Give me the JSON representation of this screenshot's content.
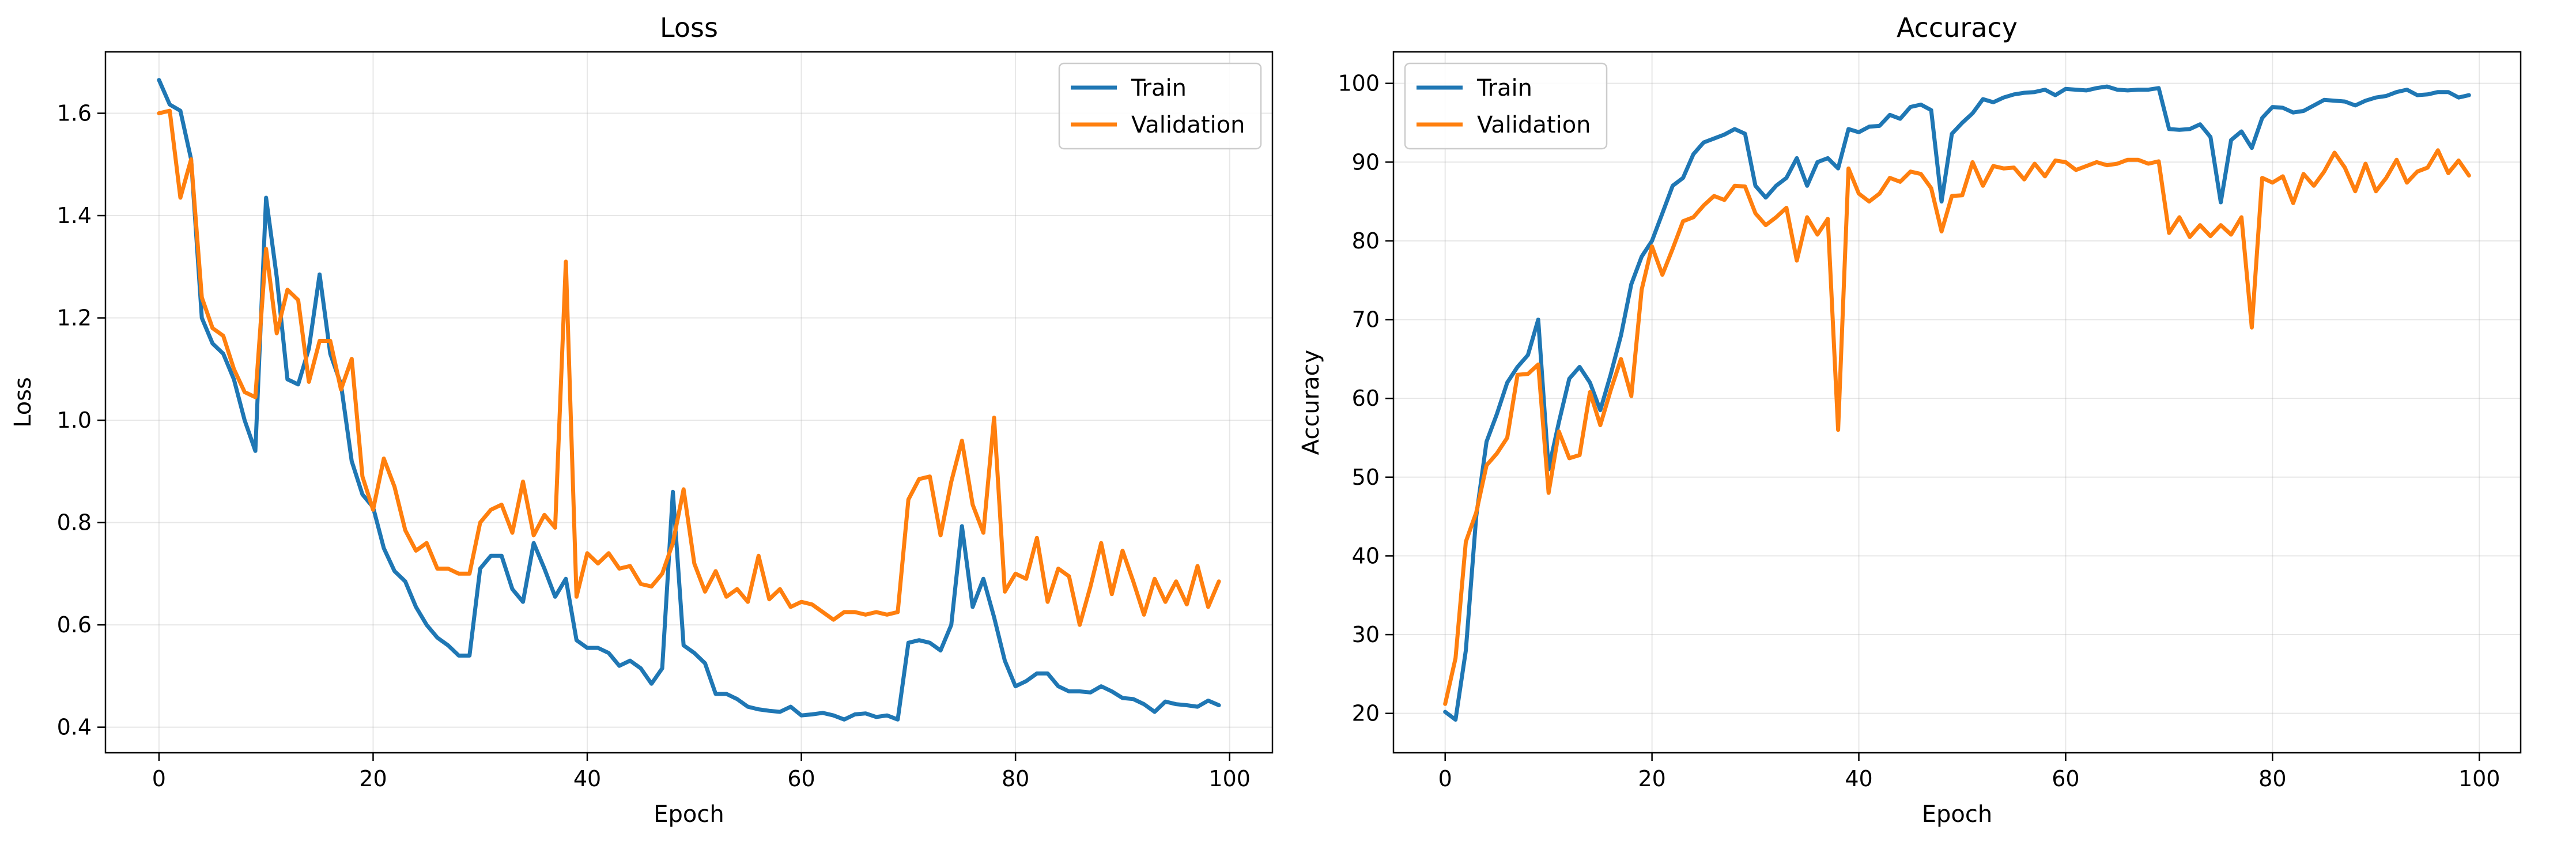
{
  "colors": {
    "train": "#1f77b4",
    "validation": "#ff7f0e"
  },
  "chart_data": [
    {
      "type": "line",
      "title": "Loss",
      "xlabel": "Epoch",
      "ylabel": "Loss",
      "xlim": [
        -5,
        104
      ],
      "ylim": [
        0.35,
        1.72
      ],
      "xticks": [
        0,
        20,
        40,
        60,
        80,
        100
      ],
      "yticks": [
        0.4,
        0.6,
        0.8,
        1.0,
        1.2,
        1.4,
        1.6
      ],
      "ytick_labels": [
        "0.4",
        "0.6",
        "0.8",
        "1.0",
        "1.2",
        "1.4",
        "1.6"
      ],
      "grid": true,
      "legend_position": "top-right",
      "x": [
        0,
        1,
        2,
        3,
        4,
        5,
        6,
        7,
        8,
        9,
        10,
        11,
        12,
        13,
        14,
        15,
        16,
        17,
        18,
        19,
        20,
        21,
        22,
        23,
        24,
        25,
        26,
        27,
        28,
        29,
        30,
        31,
        32,
        33,
        34,
        35,
        36,
        37,
        38,
        39,
        40,
        41,
        42,
        43,
        44,
        45,
        46,
        47,
        48,
        49,
        50,
        51,
        52,
        53,
        54,
        55,
        56,
        57,
        58,
        59,
        60,
        61,
        62,
        63,
        64,
        65,
        66,
        67,
        68,
        69,
        70,
        71,
        72,
        73,
        74,
        75,
        76,
        77,
        78,
        79,
        80,
        81,
        82,
        83,
        84,
        85,
        86,
        87,
        88,
        89,
        90,
        91,
        92,
        93,
        94,
        95,
        96,
        97,
        98,
        99
      ],
      "series": [
        {
          "name": "Train",
          "color": "#1f77b4",
          "values": [
            1.665,
            1.617,
            1.605,
            1.51,
            1.2,
            1.15,
            1.13,
            1.08,
            1.0,
            0.94,
            1.435,
            1.28,
            1.08,
            1.07,
            1.14,
            1.285,
            1.13,
            1.07,
            0.92,
            0.855,
            0.83,
            0.75,
            0.705,
            0.685,
            0.635,
            0.6,
            0.575,
            0.56,
            0.54,
            0.54,
            0.71,
            0.735,
            0.735,
            0.67,
            0.645,
            0.76,
            0.71,
            0.655,
            0.69,
            0.57,
            0.555,
            0.555,
            0.545,
            0.52,
            0.53,
            0.515,
            0.485,
            0.515,
            0.86,
            0.56,
            0.545,
            0.525,
            0.465,
            0.465,
            0.455,
            0.44,
            0.435,
            0.432,
            0.43,
            0.44,
            0.423,
            0.425,
            0.428,
            0.423,
            0.415,
            0.425,
            0.427,
            0.42,
            0.423,
            0.415,
            0.565,
            0.57,
            0.565,
            0.55,
            0.6,
            0.793,
            0.635,
            0.69,
            0.615,
            0.53,
            0.48,
            0.49,
            0.505,
            0.505,
            0.48,
            0.47,
            0.47,
            0.468,
            0.48,
            0.47,
            0.457,
            0.455,
            0.445,
            0.43,
            0.45,
            0.445,
            0.443,
            0.44,
            0.452,
            0.443
          ]
        },
        {
          "name": "Validation",
          "color": "#ff7f0e",
          "values": [
            1.6,
            1.605,
            1.435,
            1.51,
            1.24,
            1.18,
            1.165,
            1.1,
            1.055,
            1.045,
            1.335,
            1.17,
            1.255,
            1.235,
            1.075,
            1.155,
            1.155,
            1.06,
            1.12,
            0.89,
            0.825,
            0.925,
            0.87,
            0.785,
            0.745,
            0.76,
            0.71,
            0.71,
            0.7,
            0.7,
            0.8,
            0.825,
            0.835,
            0.78,
            0.88,
            0.775,
            0.815,
            0.79,
            1.31,
            0.655,
            0.74,
            0.72,
            0.74,
            0.71,
            0.715,
            0.68,
            0.675,
            0.7,
            0.76,
            0.865,
            0.72,
            0.665,
            0.705,
            0.655,
            0.67,
            0.645,
            0.735,
            0.65,
            0.67,
            0.635,
            0.645,
            0.64,
            0.625,
            0.61,
            0.625,
            0.625,
            0.62,
            0.625,
            0.62,
            0.625,
            0.845,
            0.885,
            0.89,
            0.775,
            0.88,
            0.96,
            0.835,
            0.78,
            1.005,
            0.665,
            0.7,
            0.69,
            0.77,
            0.645,
            0.71,
            0.695,
            0.6,
            0.675,
            0.76,
            0.66,
            0.745,
            0.685,
            0.62,
            0.69,
            0.645,
            0.685,
            0.64,
            0.715,
            0.635,
            0.685
          ]
        }
      ]
    },
    {
      "type": "line",
      "title": "Accuracy",
      "xlabel": "Epoch",
      "ylabel": "Accuracy",
      "xlim": [
        -5,
        104
      ],
      "ylim": [
        15,
        104
      ],
      "xticks": [
        0,
        20,
        40,
        60,
        80,
        100
      ],
      "yticks": [
        20,
        30,
        40,
        50,
        60,
        70,
        80,
        90,
        100
      ],
      "ytick_labels": [
        "20",
        "30",
        "40",
        "50",
        "60",
        "70",
        "80",
        "90",
        "100"
      ],
      "grid": true,
      "legend_position": "top-left",
      "x": [
        0,
        1,
        2,
        3,
        4,
        5,
        6,
        7,
        8,
        9,
        10,
        11,
        12,
        13,
        14,
        15,
        16,
        17,
        18,
        19,
        20,
        21,
        22,
        23,
        24,
        25,
        26,
        27,
        28,
        29,
        30,
        31,
        32,
        33,
        34,
        35,
        36,
        37,
        38,
        39,
        40,
        41,
        42,
        43,
        44,
        45,
        46,
        47,
        48,
        49,
        50,
        51,
        52,
        53,
        54,
        55,
        56,
        57,
        58,
        59,
        60,
        61,
        62,
        63,
        64,
        65,
        66,
        67,
        68,
        69,
        70,
        71,
        72,
        73,
        74,
        75,
        76,
        77,
        78,
        79,
        80,
        81,
        82,
        83,
        84,
        85,
        86,
        87,
        88,
        89,
        90,
        91,
        92,
        93,
        94,
        95,
        96,
        97,
        98,
        99
      ],
      "series": [
        {
          "name": "Train",
          "color": "#1f77b4",
          "values": [
            20.2,
            19.2,
            28,
            45,
            54.5,
            58,
            62,
            64,
            65.5,
            70,
            51,
            57,
            62.5,
            64,
            62,
            58.5,
            63,
            68,
            74.5,
            78,
            80,
            83.5,
            87,
            88,
            91,
            92.5,
            93,
            93.5,
            94.2,
            93.6,
            87,
            85.5,
            87,
            88,
            90.5,
            87,
            90,
            90.5,
            89.2,
            94.2,
            93.8,
            94.5,
            94.6,
            96,
            95.5,
            97,
            97.3,
            96.6,
            85,
            93.6,
            95,
            96.2,
            98,
            97.6,
            98.2,
            98.6,
            98.8,
            98.9,
            99.2,
            98.5,
            99.3,
            99.2,
            99.1,
            99.4,
            99.6,
            99.2,
            99.1,
            99.2,
            99.2,
            99.4,
            94.2,
            94.1,
            94.2,
            94.8,
            93.2,
            84.9,
            92.8,
            93.9,
            91.8,
            95.6,
            97,
            96.9,
            96.3,
            96.5,
            97.2,
            97.9,
            97.8,
            97.7,
            97.2,
            97.8,
            98.2,
            98.4,
            98.9,
            99.2,
            98.5,
            98.6,
            98.9,
            98.9,
            98.2,
            98.5
          ]
        },
        {
          "name": "Validation",
          "color": "#ff7f0e",
          "values": [
            21.2,
            27,
            41.8,
            45.5,
            51.5,
            53,
            55,
            63,
            63.1,
            64.3,
            48,
            55.8,
            52.4,
            52.8,
            60.8,
            56.6,
            61,
            65,
            60.3,
            73.8,
            79.3,
            75.7,
            79,
            82.5,
            83,
            84.5,
            85.7,
            85.2,
            87,
            86.9,
            83.5,
            82,
            83,
            84.2,
            77.5,
            83,
            80.8,
            82.8,
            56,
            89.2,
            86,
            85,
            86,
            88,
            87.5,
            88.8,
            88.5,
            86.7,
            81.2,
            85.7,
            85.8,
            90,
            87,
            89.5,
            89.2,
            89.3,
            87.8,
            89.8,
            88.2,
            90.2,
            90,
            89,
            89.5,
            90,
            89.6,
            89.8,
            90.3,
            90.3,
            89.8,
            90.1,
            81,
            83,
            80.5,
            82,
            80.6,
            82,
            80.8,
            83,
            69,
            88,
            87.4,
            88.2,
            84.8,
            88.5,
            87,
            88.8,
            91.2,
            89.3,
            86.3,
            89.8,
            86.3,
            88,
            90.3,
            87.4,
            88.8,
            89.3,
            91.5,
            88.6,
            90.2,
            88.3
          ]
        }
      ]
    }
  ]
}
